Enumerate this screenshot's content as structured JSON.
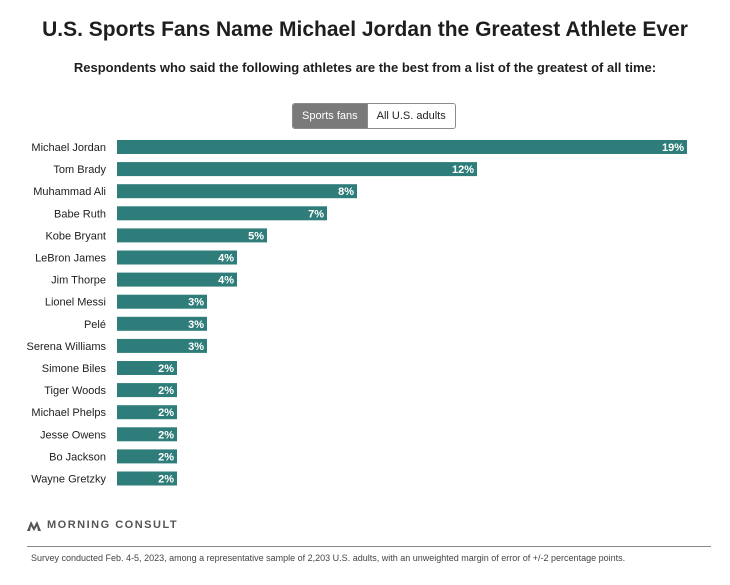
{
  "header": {
    "title": "U.S. Sports Fans Name Michael Jordan the Greatest Athlete Ever",
    "subtitle": "Respondents who said the following athletes are the best from a list of the greatest of all time:"
  },
  "toggle": {
    "options": [
      "Sports fans",
      "All U.S. adults"
    ],
    "selected": "Sports fans"
  },
  "colors": {
    "bar": "#2e7d7a",
    "toggle_active": "#7a7a7a"
  },
  "chart_data": {
    "type": "bar",
    "orientation": "horizontal",
    "categories": [
      "Michael Jordan",
      "Tom Brady",
      "Muhammad Ali",
      "Babe Ruth",
      "Kobe Bryant",
      "LeBron James",
      "Jim Thorpe",
      "Lionel Messi",
      "Pelé",
      "Serena Williams",
      "Simone Biles",
      "Tiger Woods",
      "Michael Phelps",
      "Jesse Owens",
      "Bo Jackson",
      "Wayne Gretzky"
    ],
    "values": [
      19,
      12,
      8,
      7,
      5,
      4,
      4,
      3,
      3,
      3,
      2,
      2,
      2,
      2,
      2,
      2
    ],
    "value_suffix": "%",
    "xlim": [
      0,
      19
    ],
    "grid": false,
    "legend": "none"
  },
  "footer": {
    "logo_text": "MORNING CONSULT",
    "logo_icon": "morning-consult-logo-icon",
    "note": "Survey conducted Feb. 4-5, 2023, among a representative sample of 2,203 U.S. adults, with an unweighted margin of error of +/-2 percentage points."
  }
}
